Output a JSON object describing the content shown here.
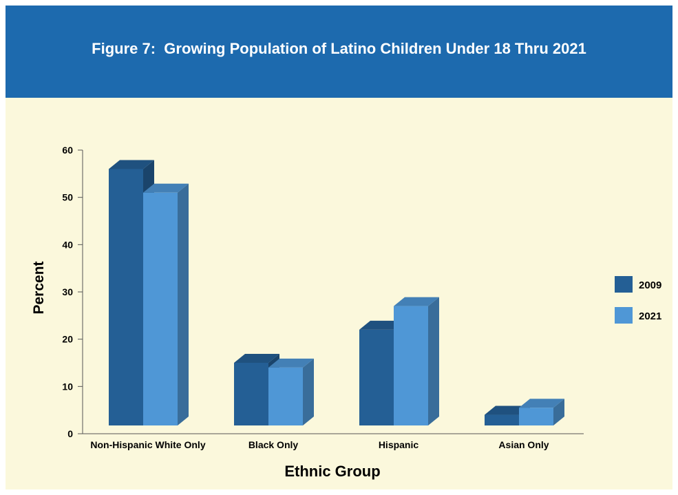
{
  "chart_data": {
    "type": "bar",
    "title": "Figure 7:  Growing Population of Latino Children Under 18 Thru 2021",
    "xlabel": "Ethnic Group",
    "ylabel": "Percent",
    "categories": [
      "Non-Hispanic White Only",
      "Black Only",
      "Hispanic",
      "Asian Only"
    ],
    "series": [
      {
        "name": "2009",
        "values": [
          56,
          15,
          22,
          4
        ],
        "color": "#245f95"
      },
      {
        "name": "2021",
        "values": [
          51,
          14,
          27,
          5.5
        ],
        "color": "#4f97d6"
      }
    ],
    "ylim": [
      0,
      60
    ],
    "yticks": [
      0,
      10,
      20,
      30,
      40,
      50,
      60
    ],
    "grid": false,
    "legend_position": "right",
    "style": "3d"
  },
  "colors": {
    "banner": "#1d6aae",
    "background": "#fbf8dc"
  }
}
